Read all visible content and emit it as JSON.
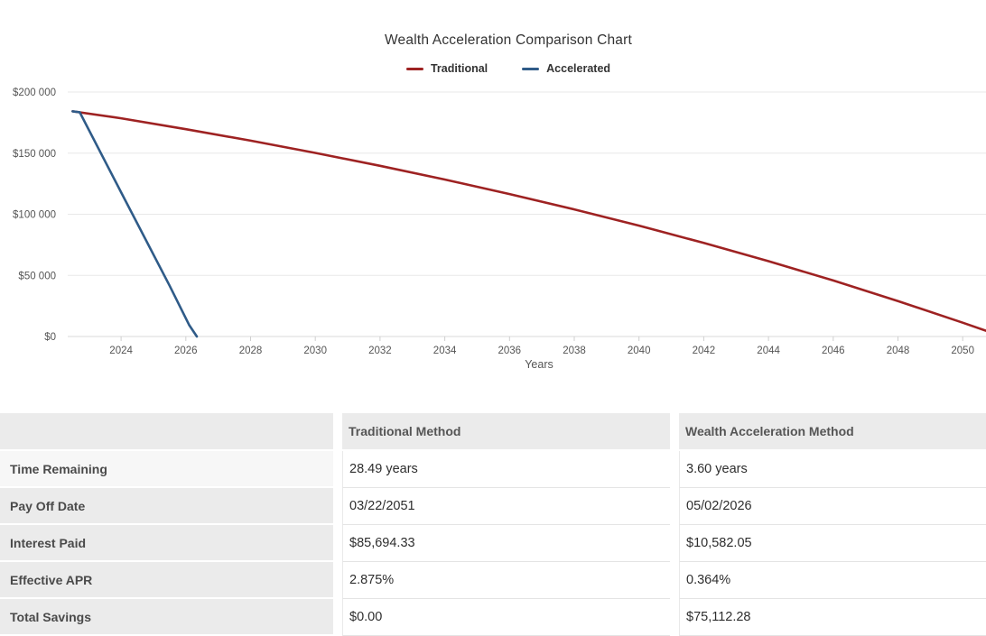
{
  "chart_data": {
    "type": "line",
    "title": "Wealth Acceleration Comparison Chart",
    "xlabel": "Years",
    "ylabel": "",
    "x_domain": [
      2022.35,
      2050.72
    ],
    "ylim": [
      0,
      200000
    ],
    "grid": "horizontal",
    "legend_position": "top",
    "y_ticks": [
      {
        "value": 200000,
        "label": "$200 000"
      },
      {
        "value": 150000,
        "label": "$150 000"
      },
      {
        "value": 100000,
        "label": "$100 000"
      },
      {
        "value": 50000,
        "label": "$50 000"
      },
      {
        "value": 0,
        "label": "$0"
      }
    ],
    "x_ticks": [
      {
        "value": 2024,
        "label": "2024"
      },
      {
        "value": 2026,
        "label": "2026"
      },
      {
        "value": 2028,
        "label": "2028"
      },
      {
        "value": 2030,
        "label": "2030"
      },
      {
        "value": 2032,
        "label": "2032"
      },
      {
        "value": 2034,
        "label": "2034"
      },
      {
        "value": 2036,
        "label": "2036"
      },
      {
        "value": 2038,
        "label": "2038"
      },
      {
        "value": 2040,
        "label": "2040"
      },
      {
        "value": 2042,
        "label": "2042"
      },
      {
        "value": 2044,
        "label": "2044"
      },
      {
        "value": 2046,
        "label": "2046"
      },
      {
        "value": 2048,
        "label": "2048"
      },
      {
        "value": 2050,
        "label": "2050"
      }
    ],
    "series": [
      {
        "name": "Traditional",
        "color": "#9e2222",
        "points": [
          [
            2022.5,
            184200
          ],
          [
            2024,
            178500
          ],
          [
            2026,
            169600
          ],
          [
            2028,
            160200
          ],
          [
            2030,
            150200
          ],
          [
            2032,
            139600
          ],
          [
            2034,
            128400
          ],
          [
            2036,
            116500
          ],
          [
            2038,
            104000
          ],
          [
            2040,
            90700
          ],
          [
            2042,
            76500
          ],
          [
            2044,
            61600
          ],
          [
            2046,
            45800
          ],
          [
            2048,
            29000
          ],
          [
            2050,
            11300
          ],
          [
            2050.72,
            4700
          ]
        ]
      },
      {
        "name": "Accelerated",
        "color": "#2f5b88",
        "points": [
          [
            2022.5,
            184200
          ],
          [
            2022.72,
            183500
          ],
          [
            2024,
            118000
          ],
          [
            2025.5,
            41500
          ],
          [
            2026.1,
            9500
          ],
          [
            2026.34,
            0
          ]
        ]
      }
    ]
  },
  "table": {
    "columns": [
      "",
      "Traditional Method",
      "Wealth Acceleration Method"
    ],
    "rows": [
      [
        "Time Remaining",
        "28.49 years",
        "3.60 years"
      ],
      [
        "Pay Off Date",
        "03/22/2051",
        "05/02/2026"
      ],
      [
        "Interest Paid",
        "$85,694.33",
        "$10,582.05"
      ],
      [
        "Effective APR",
        "2.875%",
        "0.364%"
      ],
      [
        "Total Savings",
        "$0.00",
        "$75,112.28"
      ]
    ]
  }
}
